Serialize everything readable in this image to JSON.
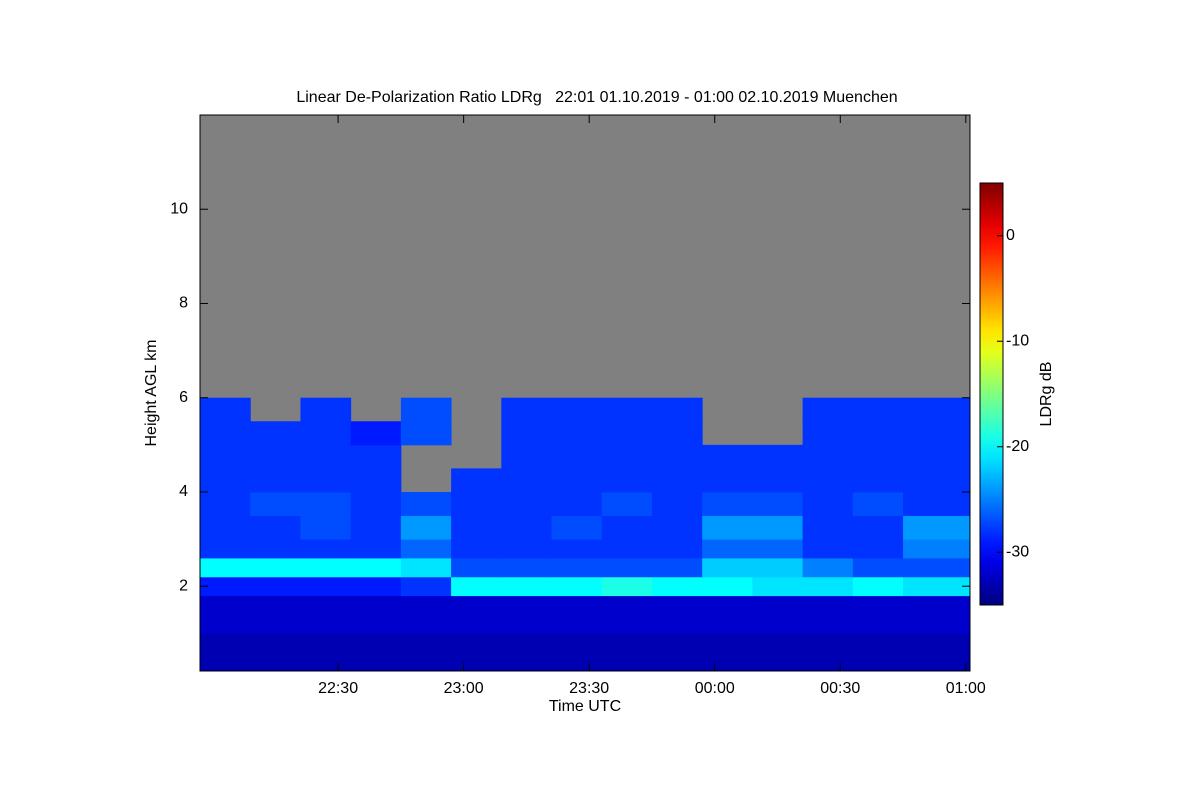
{
  "chart_data": {
    "type": "heatmap",
    "title": "Linear De-Polarization Ratio LDRg   22:01 01.10.2019 - 01:00 02.10.2019 Muenchen",
    "xlabel": "Time UTC",
    "ylabel": "Height AGL km",
    "colorbar_label": "LDRg dB",
    "background": "#808080",
    "colormap": "jet",
    "xlim": [
      -3,
      181
    ],
    "xticks": [
      {
        "value": 30,
        "label": "22:30"
      },
      {
        "value": 60,
        "label": "23:00"
      },
      {
        "value": 90,
        "label": "23:30"
      },
      {
        "value": 120,
        "label": "00:00"
      },
      {
        "value": 150,
        "label": "00:30"
      },
      {
        "value": 180,
        "label": "01:00"
      }
    ],
    "ylim": [
      0.2,
      12
    ],
    "yticks": [
      2,
      4,
      6,
      8,
      10
    ],
    "clim": [
      -35,
      5
    ],
    "cticks": [
      -30,
      -20,
      -10,
      0
    ],
    "xbins": [
      -3,
      9,
      21,
      33,
      45,
      57,
      69,
      81,
      93,
      105,
      117,
      129,
      141,
      153,
      165,
      181
    ],
    "ybins": [
      0.2,
      1,
      1.8,
      2.2,
      2.6,
      3,
      3.5,
      4,
      4.5,
      5,
      5.5,
      6,
      12
    ],
    "values": [
      [
        -33,
        -33,
        -33,
        -33,
        -33,
        -33,
        -33,
        -33,
        -33,
        -33,
        -33,
        -33,
        -33,
        -33,
        -33
      ],
      [
        -32,
        -32,
        -32,
        -32,
        -32,
        -32,
        -32,
        -32,
        -32,
        -32,
        -32,
        -32,
        -32,
        -32,
        -32
      ],
      [
        -29,
        -29,
        -29,
        -29,
        -28,
        -20,
        -20,
        -20,
        -19,
        -20,
        -20,
        -21,
        -21,
        -20,
        -21
      ],
      [
        -20,
        -20,
        -20,
        -20,
        -21,
        -27,
        -27,
        -27,
        -27,
        -27,
        -22,
        -22,
        -25,
        -27,
        -27
      ],
      [
        -28,
        -28,
        -28,
        -28,
        -26,
        -28,
        -28,
        -28,
        -28,
        -28,
        -26,
        -26,
        -28,
        -28,
        -25
      ],
      [
        -28,
        -28,
        -27,
        -28,
        -24,
        -28,
        -28,
        -27,
        -28,
        -28,
        -24,
        -24,
        -28,
        -28,
        -24
      ],
      [
        -28,
        -27,
        -27,
        -28,
        -27,
        -28,
        -28,
        -28,
        -27,
        -28,
        -27,
        -27,
        -28,
        -27,
        -28
      ],
      [
        -28,
        -28,
        -28,
        -28,
        null,
        -28,
        -28,
        -28,
        -28,
        -28,
        -28,
        -28,
        -28,
        -28,
        -28
      ],
      [
        -28,
        -28,
        -28,
        -28,
        null,
        null,
        -28,
        -28,
        -28,
        -28,
        -28,
        -28,
        -28,
        -28,
        -28
      ],
      [
        -28,
        -28,
        -28,
        -29,
        -27,
        null,
        -28,
        -28,
        -28,
        -28,
        null,
        null,
        -28,
        -28,
        -28
      ],
      [
        -28,
        null,
        -28,
        null,
        -27,
        null,
        -28,
        -28,
        -28,
        -28,
        null,
        null,
        -28,
        -28,
        -28
      ],
      [
        null,
        null,
        null,
        null,
        null,
        null,
        null,
        null,
        null,
        null,
        null,
        null,
        null,
        null,
        null
      ]
    ]
  }
}
